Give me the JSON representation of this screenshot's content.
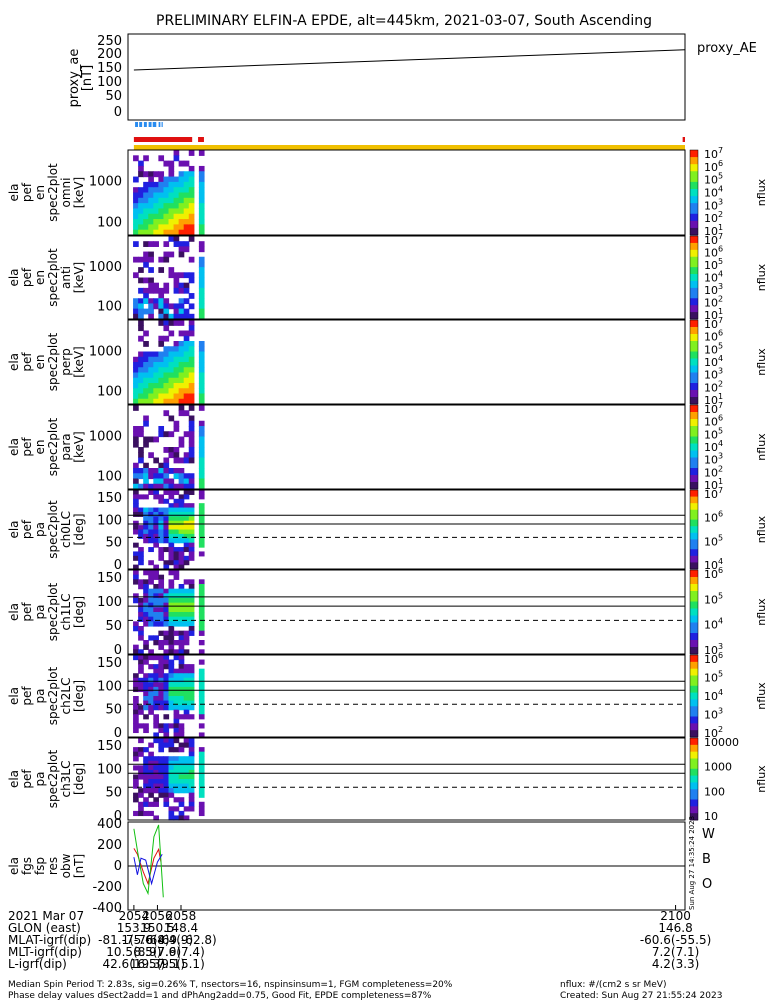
{
  "title": "PRELIMINARY ELFIN-A EPDE, alt=445km, 2021-03-07, South Ascending",
  "colors": {
    "axis": "#000000",
    "qual_blue": "#2a8cf0",
    "qual_red": "#e01010",
    "qual_yellow": "#f0c000",
    "fgs_red": "#e01010",
    "fgs_green": "#10c010",
    "fgs_blue": "#1010e0"
  },
  "colormap": [
    "#ffffff",
    "#3a1060",
    "#6a10b0",
    "#2020e0",
    "#2080f0",
    "#00c0f0",
    "#00e0c0",
    "#20e060",
    "#80f020",
    "#f0f000",
    "#ffa000",
    "#ff2000"
  ],
  "proxy_ae": {
    "ylabel": [
      "proxy_ae",
      "[nT]"
    ],
    "yticks": [
      "250",
      "200",
      "150",
      "100",
      "50",
      "0"
    ],
    "legend": "proxy_AE",
    "series": {
      "x": [
        2054.0,
        2100.8
      ],
      "y": [
        146,
        210
      ]
    },
    "ylim": [
      0,
      260
    ]
  },
  "quality_bars": {
    "blue_segments": [
      [
        2054.1,
        2054.35
      ],
      [
        2054.45,
        2054.7
      ],
      [
        2054.85,
        2055.1
      ],
      [
        2055.25,
        2055.5
      ],
      [
        2055.6,
        2055.9
      ],
      [
        2056.1,
        2056.25
      ],
      [
        2056.35,
        2056.45
      ]
    ],
    "red_segments": [
      [
        2054.0,
        2058.95
      ],
      [
        2059.45,
        2059.95
      ],
      [
        2100.6,
        2100.8
      ]
    ],
    "yellow_segments": [
      [
        2054.0,
        2100.8
      ]
    ]
  },
  "energy_panels": [
    {
      "ylabel": [
        "ela",
        "pef",
        "en",
        "spec2plot",
        "omni",
        "[keV]"
      ],
      "yticks": [
        "1000",
        "100"
      ],
      "cb_ticks": [
        "10^7",
        "10^6",
        "10^5",
        "10^4",
        "10^3",
        "10^2",
        "10^1"
      ],
      "cb_label": "nflux",
      "profile": "omni"
    },
    {
      "ylabel": [
        "ela",
        "pef",
        "en",
        "spec2plot",
        "anti",
        "[keV]"
      ],
      "yticks": [
        "1000",
        "100"
      ],
      "cb_ticks": [
        "10^7",
        "10^6",
        "10^5",
        "10^4",
        "10^3",
        "10^2",
        "10^1"
      ],
      "cb_label": "nflux",
      "profile": "anti"
    },
    {
      "ylabel": [
        "ela",
        "pef",
        "en",
        "spec2plot",
        "perp",
        "[keV]"
      ],
      "yticks": [
        "1000",
        "100"
      ],
      "cb_ticks": [
        "10^7",
        "10^6",
        "10^5",
        "10^4",
        "10^3",
        "10^2",
        "10^1"
      ],
      "cb_label": "nflux",
      "profile": "perp"
    },
    {
      "ylabel": [
        "ela",
        "pef",
        "en",
        "spec2plot",
        "para",
        "[keV]"
      ],
      "yticks": [
        "1000",
        "100"
      ],
      "cb_ticks": [
        "10^7",
        "10^6",
        "10^5",
        "10^4",
        "10^3",
        "10^2",
        "10^1"
      ],
      "cb_label": "nflux",
      "profile": "para"
    }
  ],
  "pitch_panels": [
    {
      "ylabel": [
        "ela",
        "pef",
        "pa",
        "spec2plot",
        "ch0LC",
        "[deg]"
      ],
      "yticks": [
        "150",
        "100",
        "50",
        "0"
      ],
      "cb_ticks": [
        "10^7",
        "10^6",
        "10^5",
        "10^4"
      ],
      "cb_label": "nflux",
      "profile": "ch0"
    },
    {
      "ylabel": [
        "ela",
        "pef",
        "pa",
        "spec2plot",
        "ch1LC",
        "[deg]"
      ],
      "yticks": [
        "150",
        "100",
        "50",
        "0"
      ],
      "cb_ticks": [
        "10^6",
        "10^5",
        "10^4",
        "10^3"
      ],
      "cb_label": "nflux",
      "profile": "ch1"
    },
    {
      "ylabel": [
        "ela",
        "pef",
        "pa",
        "spec2plot",
        "ch2LC",
        "[deg]"
      ],
      "yticks": [
        "150",
        "100",
        "50",
        "0"
      ],
      "cb_ticks": [
        "10^6",
        "10^5",
        "10^4",
        "10^3",
        "10^2"
      ],
      "cb_label": "nflux",
      "profile": "ch2"
    },
    {
      "ylabel": [
        "ela",
        "pef",
        "pa",
        "spec2plot",
        "ch3LC",
        "[deg]"
      ],
      "yticks": [
        "150",
        "100",
        "50",
        "0"
      ],
      "cb_ticks": [
        "10000",
        "1000",
        "100",
        "10"
      ],
      "cb_label": "nflux",
      "profile": "ch3"
    }
  ],
  "fgs_panel": {
    "ylabel": [
      "ela",
      "fgs",
      "fsp",
      "res",
      "obw",
      "[nT]"
    ],
    "yticks": [
      "400",
      "200",
      "0",
      "-200",
      "-400"
    ],
    "ylim": [
      -450,
      450
    ],
    "legend": [
      "W",
      "B",
      "O"
    ],
    "series": [
      {
        "name": "W",
        "x": [
          2054.0,
          2054.3,
          2054.8,
          2055.2,
          2055.7,
          2056.1,
          2056.3
        ],
        "y": [
          180,
          120,
          -60,
          -180,
          80,
          170,
          40
        ]
      },
      {
        "name": "B",
        "x": [
          2054.0,
          2054.3,
          2054.8,
          2055.2,
          2055.7,
          2056.1,
          2056.5
        ],
        "y": [
          380,
          160,
          -180,
          -280,
          300,
          420,
          -320
        ]
      },
      {
        "name": "O",
        "x": [
          2054.0,
          2054.3,
          2054.6,
          2055.0,
          2055.5,
          2056.0,
          2056.4
        ],
        "y": [
          90,
          -90,
          80,
          60,
          -180,
          40,
          120
        ]
      }
    ]
  },
  "side_stamp": "Sun Aug 27 14:35:24 2023",
  "xaxis": {
    "ticks": [
      "2054",
      "2056",
      "2058",
      "2100"
    ],
    "tick_values": [
      2054.0,
      2056.0,
      2058.0,
      2100.0
    ],
    "xlim": [
      2053.5,
      2100.8
    ],
    "rows": [
      {
        "label": "2021 Mar 07",
        "values": [
          "2054",
          "2056",
          "2058",
          "2100"
        ]
      },
      {
        "label": "GLON (east)",
        "values": [
          "153.9",
          "150.5",
          "148.4",
          "146.8"
        ]
      },
      {
        "label": "MLAT-igrf(dip)",
        "values": [
          "-81.1(-76.4)",
          "-75.6(-69.9)",
          "-68.4(-62.8)",
          "-60.6(-55.5)"
        ]
      },
      {
        "label": "MLT-igrf(dip)",
        "values": [
          "10.5(8.9)",
          "8.5(7.9)",
          "7.6(7.4)",
          "7.2(7.1)"
        ]
      },
      {
        "label": "L-igrf(dip)",
        "values": [
          "42.6(19.3)",
          "16.5(9.1)",
          "7.5(5.1)",
          "4.2(3.3)"
        ]
      }
    ]
  },
  "footer": {
    "line1": "Median Spin Period T: 2.83s, sig=0.26% T, nsectors=16, nspinsinsum=1, FGM completeness=20%",
    "line2": "Phase delay values dSect2add=1 and dPhAng2add=0.75, Good Fit, EPDE completeness=87%",
    "units": "nflux: #/(cm2 s sr MeV)",
    "created": "Created: Sun Aug 27 21:55:24 2023"
  }
}
